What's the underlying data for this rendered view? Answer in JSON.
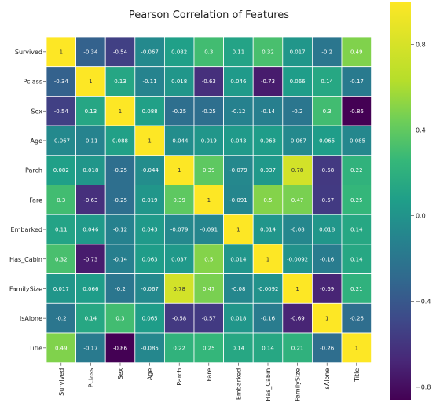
{
  "chart_data": {
    "type": "heatmap",
    "title": "Pearson Correlation of Features",
    "row_labels": [
      "Survived",
      "Pclass",
      "Sex",
      "Age",
      "Parch",
      "Fare",
      "Embarked",
      "Has_Cabin",
      "FamilySize",
      "IsAlone",
      "Title"
    ],
    "col_labels": [
      "Survived",
      "Pclass",
      "Sex",
      "Age",
      "Parch",
      "Fare",
      "Embarked",
      "Has_Cabin",
      "FamilySize",
      "IsAlone",
      "Title"
    ],
    "values": [
      [
        1,
        -0.34,
        -0.54,
        -0.067,
        0.082,
        0.3,
        0.11,
        0.32,
        0.017,
        -0.2,
        0.49
      ],
      [
        -0.34,
        1,
        0.13,
        -0.11,
        0.018,
        -0.63,
        0.046,
        -0.73,
        0.066,
        0.14,
        -0.17
      ],
      [
        -0.54,
        0.13,
        1,
        0.088,
        -0.25,
        -0.25,
        -0.12,
        -0.14,
        -0.2,
        0.3,
        -0.86
      ],
      [
        -0.067,
        -0.11,
        0.088,
        1,
        -0.044,
        0.019,
        0.043,
        0.063,
        -0.067,
        0.065,
        -0.085
      ],
      [
        0.082,
        0.018,
        -0.25,
        -0.044,
        1,
        0.39,
        -0.079,
        0.037,
        0.78,
        -0.58,
        0.22
      ],
      [
        0.3,
        -0.63,
        -0.25,
        0.019,
        0.39,
        1,
        -0.091,
        0.5,
        0.47,
        -0.57,
        0.25
      ],
      [
        0.11,
        0.046,
        -0.12,
        0.043,
        -0.079,
        -0.091,
        1,
        0.014,
        -0.08,
        0.018,
        0.14
      ],
      [
        0.32,
        -0.73,
        -0.14,
        0.063,
        0.037,
        0.5,
        0.014,
        1,
        -0.0092,
        -0.16,
        0.14
      ],
      [
        0.017,
        0.066,
        -0.2,
        -0.067,
        0.78,
        0.47,
        -0.08,
        -0.0092,
        1,
        -0.69,
        0.21
      ],
      [
        -0.2,
        0.14,
        0.3,
        0.065,
        -0.58,
        -0.57,
        0.018,
        -0.16,
        -0.69,
        1,
        -0.26
      ],
      [
        0.49,
        -0.17,
        -0.86,
        -0.085,
        0.22,
        0.25,
        0.14,
        0.14,
        0.21,
        -0.26,
        1
      ]
    ],
    "value_labels": [
      [
        "1",
        "-0.34",
        "-0.54",
        "-0.067",
        "0.082",
        "0.3",
        "0.11",
        "0.32",
        "0.017",
        "-0.2",
        "0.49"
      ],
      [
        "-0.34",
        "1",
        "0.13",
        "-0.11",
        "0.018",
        "-0.63",
        "0.046",
        "-0.73",
        "0.066",
        "0.14",
        "-0.17"
      ],
      [
        "-0.54",
        "0.13",
        "1",
        "0.088",
        "-0.25",
        "-0.25",
        "-0.12",
        "-0.14",
        "-0.2",
        "0.3",
        "-0.86"
      ],
      [
        "-0.067",
        "-0.11",
        "0.088",
        "1",
        "-0.044",
        "0.019",
        "0.043",
        "0.063",
        "-0.067",
        "0.065",
        "-0.085"
      ],
      [
        "0.082",
        "0.018",
        "-0.25",
        "-0.044",
        "1",
        "0.39",
        "-0.079",
        "0.037",
        "0.78",
        "-0.58",
        "0.22"
      ],
      [
        "0.3",
        "-0.63",
        "-0.25",
        "0.019",
        "0.39",
        "1",
        "-0.091",
        "0.5",
        "0.47",
        "-0.57",
        "0.25"
      ],
      [
        "0.11",
        "0.046",
        "-0.12",
        "0.043",
        "-0.079",
        "-0.091",
        "1",
        "0.014",
        "-0.08",
        "0.018",
        "0.14"
      ],
      [
        "0.32",
        "-0.73",
        "-0.14",
        "0.063",
        "0.037",
        "0.5",
        "0.014",
        "1",
        "-0.0092",
        "-0.16",
        "0.14"
      ],
      [
        "0.017",
        "0.066",
        "-0.2",
        "-0.067",
        "0.78",
        "0.47",
        "-0.08",
        "-0.0092",
        "1",
        "-0.69",
        "0.21"
      ],
      [
        "-0.2",
        "0.14",
        "0.3",
        "0.065",
        "-0.58",
        "-0.57",
        "0.018",
        "-0.16",
        "-0.69",
        "1",
        "-0.26"
      ],
      [
        "0.49",
        "-0.17",
        "-0.86",
        "-0.085",
        "0.22",
        "0.25",
        "0.14",
        "0.14",
        "0.21",
        "-0.26",
        "1"
      ]
    ],
    "vmin": -0.86,
    "vmax": 1,
    "colormap": "viridis",
    "colorbar_ticks": [
      0.8,
      0.4,
      0.0,
      -0.4,
      -0.8
    ],
    "colorbar_tick_labels": [
      "0.8",
      "0.4",
      "0.0",
      "−0.4",
      "−0.8"
    ],
    "grid_line_color": "#ffffff",
    "text_color": "#ffffff",
    "text_color_on_bright": "#333333"
  }
}
